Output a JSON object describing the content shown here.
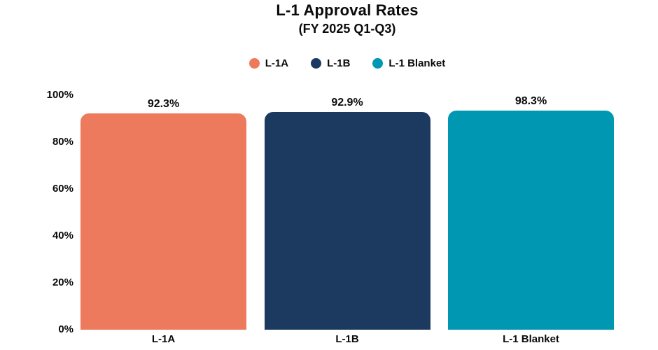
{
  "title": "L-1 Approval Rates",
  "subtitle": "(FY 2025 Q1-Q3)",
  "colors": {
    "background": "#ffffff",
    "text": "#0a0a0a",
    "salmon": "#ED7A5C",
    "navy": "#1C3A5F",
    "teal": "#0097B2"
  },
  "chart_data": {
    "type": "bar",
    "title": "L-1 Approval Rates",
    "subtitle": "(FY 2025 Q1-Q3)",
    "categories": [
      "L-1A",
      "L-1B",
      "L-1 Blanket"
    ],
    "values": [
      92.3,
      92.9,
      98.3
    ],
    "value_labels": [
      "92.3%",
      "92.9%",
      "98.3%"
    ],
    "bar_colors": [
      "#ED7A5C",
      "#1C3A5F",
      "#0097B2"
    ],
    "legend": [
      {
        "label": "L-1A",
        "color": "#ED7A5C"
      },
      {
        "label": "L-1B",
        "color": "#1C3A5F"
      },
      {
        "label": "L-1 Blanket",
        "color": "#0097B2"
      }
    ],
    "legend_position": "top-center",
    "xlabel": "",
    "ylabel": "",
    "ylim": [
      0,
      100
    ],
    "yticks": [
      {
        "value": 100,
        "label": "100%"
      },
      {
        "value": 80,
        "label": "80%"
      },
      {
        "value": 60,
        "label": "60%"
      },
      {
        "value": 40,
        "label": "40%"
      },
      {
        "value": 20,
        "label": "20%"
      },
      {
        "value": 0,
        "label": "0%"
      }
    ],
    "grid": false,
    "bar_corner_radius_px": 12
  }
}
